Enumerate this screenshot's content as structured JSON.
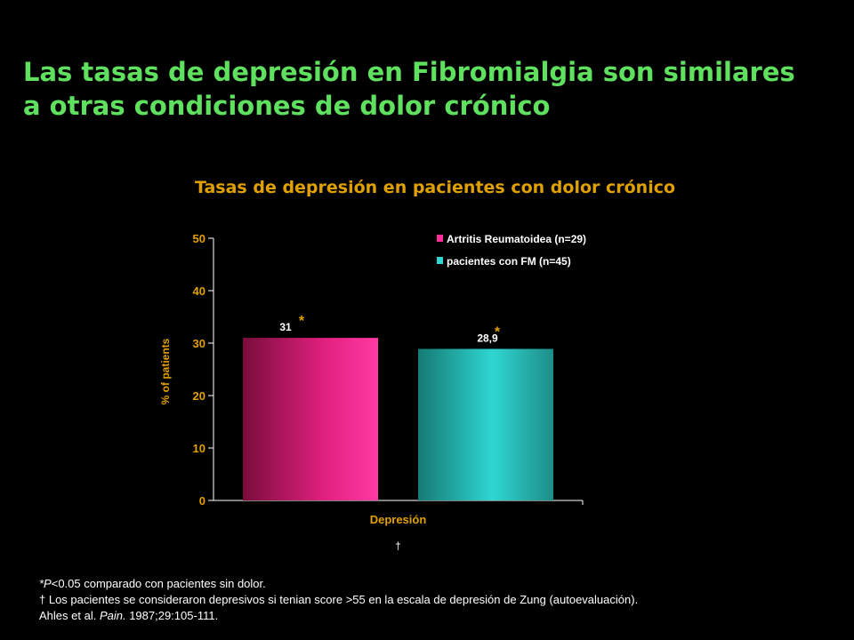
{
  "slide": {
    "title_line1": "Las tasas de depresión en Fibromialgia son similares",
    "title_line2": "a otras condiciones de dolor crónico"
  },
  "colors": {
    "title": "#5fe05f",
    "chart_title": "#e0a000",
    "series_ra": "#ff2d9a",
    "series_fm": "#2fd6d2",
    "axis_text": "#e0a000",
    "star": "#e0a000"
  },
  "chart_data": {
    "type": "bar",
    "title": "Tasas de depresión en pacientes con dolor crónico",
    "categories": [
      "Depresión"
    ],
    "xlabel": "Depresión",
    "ylabel": "% of patients",
    "ylim": [
      0,
      50
    ],
    "yticks": [
      0,
      10,
      20,
      30,
      40,
      50
    ],
    "legend_position": "top-right",
    "grid": false,
    "series": [
      {
        "name": "Artritis Reumatoidea (n=29)",
        "values": [
          31
        ],
        "value_label": "31",
        "marker": "*"
      },
      {
        "name": "pacientes con FM (n=45)",
        "values": [
          28.9
        ],
        "value_label": "28,9",
        "marker": "*"
      }
    ],
    "dagger": "†"
  },
  "footnotes": {
    "line1_italic": "*P",
    "line1_rest": "<0.05 comparado con pacientes sin dolor.",
    "line2": "† Los pacientes se consideraron depresivos si tenian  score >55 en la escala de depresión de Zung (autoevaluación).",
    "line3_pre": "Ahles et al. ",
    "line3_journal": "Pain.",
    "line3_post": " 1987;29:105-111."
  }
}
